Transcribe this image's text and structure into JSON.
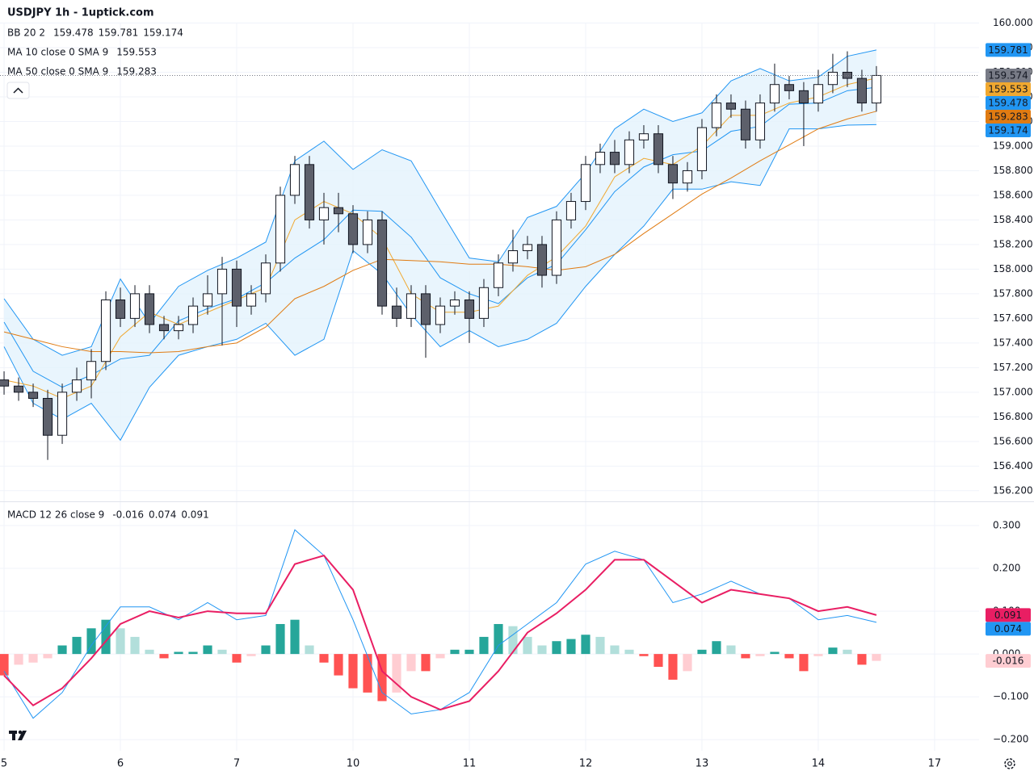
{
  "chart_data": [
    {
      "type": "candlestick",
      "title": "USDJPY 1h - 1uptick.com",
      "up_color": "#ffffff",
      "down_color": "#5d606b",
      "wick_color": "#131722",
      "close_tag_color": "#787b86",
      "band_fill": "#e3f2fd",
      "xlim": [
        -0.28,
        67.06
      ],
      "xticks": [
        {
          "value": 0,
          "label": "5"
        },
        {
          "value": 8,
          "label": "6"
        },
        {
          "value": 16,
          "label": "7"
        },
        {
          "value": 24,
          "label": "10"
        },
        {
          "value": 32,
          "label": "11"
        },
        {
          "value": 40,
          "label": "12"
        },
        {
          "value": 48,
          "label": "13"
        },
        {
          "value": 56,
          "label": "14"
        },
        {
          "value": 64,
          "label": "17"
        }
      ],
      "ylim": [
        156.12,
        160.0
      ],
      "yticks": [
        {
          "value": 156.2,
          "label": "156.200"
        },
        {
          "value": 156.4,
          "label": "156.400"
        },
        {
          "value": 156.6,
          "label": "156.600"
        },
        {
          "value": 156.8,
          "label": "156.800"
        },
        {
          "value": 157.0,
          "label": "157.000"
        },
        {
          "value": 157.2,
          "label": "157.200"
        },
        {
          "value": 157.4,
          "label": "157.400"
        },
        {
          "value": 157.6,
          "label": "157.600"
        },
        {
          "value": 157.8,
          "label": "157.800"
        },
        {
          "value": 158.0,
          "label": "158.000"
        },
        {
          "value": 158.2,
          "label": "158.200"
        },
        {
          "value": 158.4,
          "label": "158.400"
        },
        {
          "value": 158.6,
          "label": "158.600"
        },
        {
          "value": 158.8,
          "label": "158.800"
        },
        {
          "value": 159.0,
          "label": "159.000"
        },
        {
          "value": 159.2,
          "label": "159.200"
        },
        {
          "value": 159.4,
          "label": "159.400"
        },
        {
          "value": 159.6,
          "label": "159.600"
        },
        {
          "value": 159.8,
          "label": "159.800"
        },
        {
          "value": 160.0,
          "label": "160.000"
        }
      ],
      "grid": true,
      "open": [
        157.1,
        157.05,
        157.0,
        156.95,
        156.65,
        157.0,
        157.1,
        157.25,
        157.75,
        157.6,
        157.8,
        157.55,
        157.5,
        157.55,
        157.7,
        157.8,
        158.0,
        157.7,
        157.8,
        158.05,
        158.6,
        158.85,
        158.4,
        158.5,
        158.45,
        158.2,
        158.4,
        157.7,
        157.6,
        157.8,
        157.55,
        157.7,
        157.75,
        157.6,
        157.85,
        158.05,
        158.15,
        158.2,
        157.95,
        158.4,
        158.55,
        158.85,
        158.95,
        158.85,
        159.05,
        159.1,
        158.85,
        158.7,
        158.8,
        159.15,
        159.35,
        159.3,
        159.05,
        159.35,
        159.5,
        159.45,
        159.35,
        159.5,
        159.6,
        159.55,
        159.35
      ],
      "high": [
        157.17,
        157.12,
        157.07,
        157.02,
        157.07,
        157.2,
        157.35,
        157.82,
        157.85,
        157.87,
        157.87,
        157.62,
        157.62,
        157.77,
        157.95,
        158.1,
        158.07,
        157.87,
        158.12,
        158.67,
        158.92,
        158.92,
        158.62,
        158.62,
        158.52,
        158.47,
        158.47,
        157.85,
        157.87,
        157.87,
        157.77,
        157.82,
        157.82,
        157.92,
        158.12,
        158.32,
        158.27,
        158.27,
        158.47,
        158.62,
        158.92,
        159.02,
        159.05,
        159.12,
        159.17,
        159.17,
        158.92,
        158.87,
        159.22,
        159.42,
        159.42,
        159.37,
        159.42,
        159.67,
        159.57,
        159.52,
        159.62,
        159.75,
        159.77,
        159.62,
        159.65
      ],
      "low": [
        156.98,
        156.93,
        156.88,
        156.45,
        156.58,
        156.93,
        156.95,
        157.18,
        157.53,
        157.53,
        157.48,
        157.43,
        157.43,
        157.48,
        157.63,
        157.38,
        157.53,
        157.63,
        157.73,
        157.98,
        158.53,
        158.33,
        158.2,
        158.3,
        158.13,
        158.13,
        157.63,
        157.53,
        157.53,
        157.28,
        157.48,
        157.63,
        157.4,
        157.53,
        157.78,
        157.98,
        158.08,
        157.85,
        157.88,
        158.33,
        158.48,
        158.78,
        158.78,
        158.78,
        158.98,
        158.78,
        158.57,
        158.63,
        158.73,
        159.08,
        159.23,
        158.98,
        158.98,
        159.28,
        159.38,
        159.0,
        159.28,
        159.43,
        159.48,
        159.28,
        159.28
      ],
      "close": [
        157.05,
        157.0,
        156.95,
        156.65,
        157.0,
        157.1,
        157.25,
        157.75,
        157.6,
        157.8,
        157.55,
        157.5,
        157.55,
        157.7,
        157.8,
        158.0,
        157.7,
        157.8,
        158.05,
        158.6,
        158.85,
        158.4,
        158.5,
        158.45,
        158.2,
        158.4,
        157.7,
        157.6,
        157.8,
        157.55,
        157.7,
        157.75,
        157.6,
        157.85,
        158.05,
        158.15,
        158.2,
        157.95,
        158.4,
        158.55,
        158.85,
        158.95,
        158.85,
        159.05,
        159.1,
        158.85,
        158.7,
        158.8,
        159.15,
        159.35,
        159.3,
        159.05,
        159.35,
        159.5,
        159.45,
        159.35,
        159.5,
        159.6,
        159.55,
        159.35,
        159.574
      ],
      "line_x": [
        0,
        2,
        4,
        6,
        8,
        10,
        12,
        14,
        16,
        18,
        20,
        22,
        24,
        26,
        28,
        30,
        32,
        34,
        36,
        38,
        40,
        42,
        44,
        46,
        48,
        50,
        52,
        54,
        56,
        58,
        60
      ],
      "indicators": [
        {
          "label": "BB 20 2",
          "lines": [
            {
              "color": "#2196f3",
              "values": [
                157.57,
                157.17,
                157.04,
                157.14,
                157.27,
                157.3,
                157.58,
                157.68,
                157.76,
                157.89,
                158.09,
                158.24,
                158.48,
                158.47,
                158.26,
                157.93,
                157.8,
                157.72,
                157.93,
                158.04,
                158.32,
                158.63,
                158.83,
                158.93,
                158.96,
                159.12,
                159.16,
                159.34,
                159.35,
                159.45,
                159.478
              ]
            },
            {
              "color": "#2196f3",
              "values": [
                157.76,
                157.43,
                157.3,
                157.37,
                157.92,
                157.56,
                157.86,
                157.99,
                158.09,
                158.22,
                158.88,
                159.04,
                158.81,
                158.97,
                158.88,
                158.48,
                158.09,
                158.06,
                158.42,
                158.51,
                158.78,
                159.14,
                159.3,
                159.2,
                159.27,
                159.53,
                159.63,
                159.53,
                159.56,
                159.73,
                159.781
              ]
            },
            {
              "color": "#2196f3",
              "values": [
                157.37,
                156.91,
                156.78,
                156.91,
                156.61,
                157.04,
                157.3,
                157.37,
                157.43,
                157.56,
                157.3,
                157.43,
                158.15,
                157.96,
                157.63,
                157.37,
                157.5,
                157.37,
                157.43,
                157.56,
                157.86,
                158.12,
                158.35,
                158.65,
                158.65,
                158.71,
                158.68,
                159.14,
                159.14,
                159.17,
                159.174
              ]
            }
          ]
        },
        {
          "label": "MA 10 close 0 SMA 9",
          "lines": [
            {
              "color": "#f0a830",
              "values": [
                157.1,
                157.05,
                156.95,
                157.05,
                157.45,
                157.65,
                157.55,
                157.65,
                157.75,
                157.85,
                158.4,
                158.55,
                158.45,
                158.25,
                157.8,
                157.65,
                157.65,
                157.7,
                157.95,
                158.1,
                158.35,
                158.75,
                158.9,
                158.85,
                159.0,
                159.25,
                159.25,
                159.35,
                159.4,
                159.5,
                159.553
              ]
            }
          ]
        },
        {
          "label": "MA 50 close 0 SMA 9",
          "lines": [
            {
              "color": "#e07b12",
              "values": [
                157.49,
                157.43,
                157.37,
                157.33,
                157.33,
                157.32,
                157.33,
                157.37,
                157.4,
                157.53,
                157.76,
                157.86,
                157.99,
                158.08,
                158.07,
                158.06,
                158.04,
                158.04,
                158.02,
                157.99,
                158.02,
                158.12,
                158.29,
                158.45,
                158.61,
                158.74,
                158.88,
                159.01,
                159.14,
                159.22,
                159.283
              ]
            }
          ]
        }
      ]
    },
    {
      "type": "line",
      "label": "MACD 12 26 close 9",
      "ylim": [
        -0.226,
        0.349
      ],
      "yticks": [
        {
          "value": -0.2,
          "label": "−0.200"
        },
        {
          "value": -0.1,
          "label": "−0.100"
        },
        {
          "value": 0,
          "label": "0.000"
        },
        {
          "value": 0.1,
          "label": "0.100"
        },
        {
          "value": 0.2,
          "label": "0.200"
        },
        {
          "value": 0.3,
          "label": "0.300"
        }
      ],
      "grid": true,
      "histogram": {
        "colors": [
          "#26a69a",
          "#b2dfdb",
          "#ff5252",
          "#ffcdd2"
        ],
        "tag_color": "#ffcdd2",
        "legend_color": "#f7a1ad",
        "values": [
          -0.05,
          -0.025,
          -0.02,
          -0.01,
          0.02,
          0.04,
          0.06,
          0.08,
          0.06,
          0.04,
          0.01,
          -0.01,
          0.005,
          0.005,
          0.02,
          0.01,
          -0.02,
          -0.005,
          0.02,
          0.07,
          0.08,
          0.02,
          -0.02,
          -0.05,
          -0.08,
          -0.09,
          -0.11,
          -0.09,
          -0.04,
          -0.04,
          -0.01,
          0.01,
          0.01,
          0.04,
          0.07,
          0.065,
          0.04,
          0.02,
          0.03,
          0.035,
          0.045,
          0.04,
          0.02,
          0.01,
          -0.005,
          -0.03,
          -0.06,
          -0.04,
          0.01,
          0.03,
          0.02,
          -0.01,
          -0.005,
          0.005,
          -0.01,
          -0.04,
          -0.005,
          0.015,
          0.01,
          -0.025,
          -0.016
        ]
      },
      "series": [
        {
          "color": "#2196f3",
          "values": [
            -0.04,
            -0.15,
            -0.09,
            0.02,
            0.11,
            0.11,
            0.08,
            0.12,
            0.08,
            0.09,
            0.29,
            0.23,
            0.08,
            -0.09,
            -0.14,
            -0.13,
            -0.09,
            0.02,
            0.07,
            0.12,
            0.21,
            0.24,
            0.22,
            0.12,
            0.14,
            0.17,
            0.14,
            0.13,
            0.08,
            0.09,
            0.074
          ]
        },
        {
          "color": "#e91e63",
          "values": [
            -0.05,
            -0.12,
            -0.08,
            -0.01,
            0.07,
            0.1,
            0.085,
            0.1,
            0.095,
            0.095,
            0.21,
            0.23,
            0.15,
            -0.04,
            -0.1,
            -0.13,
            -0.11,
            -0.04,
            0.05,
            0.095,
            0.15,
            0.22,
            0.22,
            0.17,
            0.12,
            0.15,
            0.14,
            0.13,
            0.1,
            0.11,
            0.091
          ]
        }
      ]
    }
  ]
}
